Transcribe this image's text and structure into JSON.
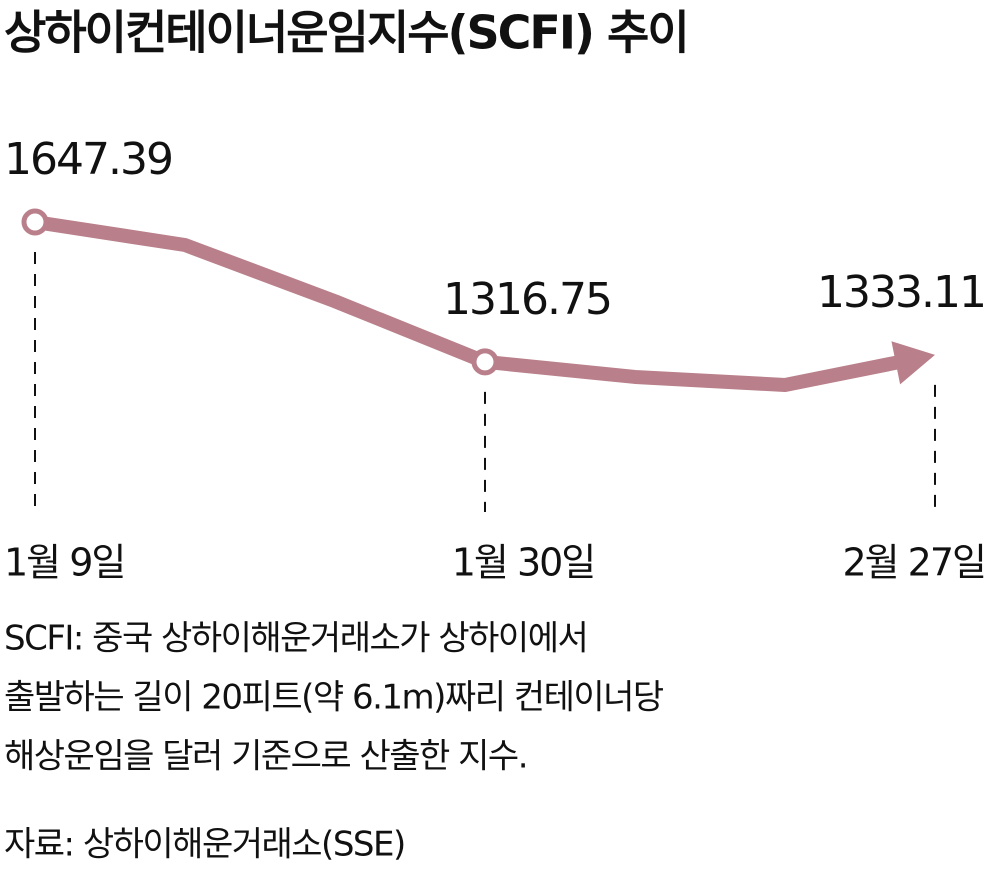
{
  "chart_data": {
    "type": "line",
    "title": "상하이컨테이너운임지수(SCFI) 추이",
    "categories": [
      "1월 9일",
      null,
      null,
      "1월 30일",
      null,
      null,
      "2월 27일"
    ],
    "series": [
      {
        "name": "SCFI",
        "color": "#b97f8a",
        "values": [
          1647.39,
          1593,
          1460,
          1316.75,
          1281,
          1262,
          1333.11
        ],
        "value_labels": [
          "1647.39",
          null,
          null,
          "1316.75",
          null,
          null,
          "1333.11"
        ]
      }
    ],
    "note": [
      "SCFI: 중국 상하이해운거래소가 상하이에서",
      "출발하는 길이 20피트(약 6.1m)짜리 컨테이너당",
      "해상운임을 달러 기준으로 산출한 지수."
    ],
    "source": "자료: 상하이해운거래소(SSE)"
  }
}
